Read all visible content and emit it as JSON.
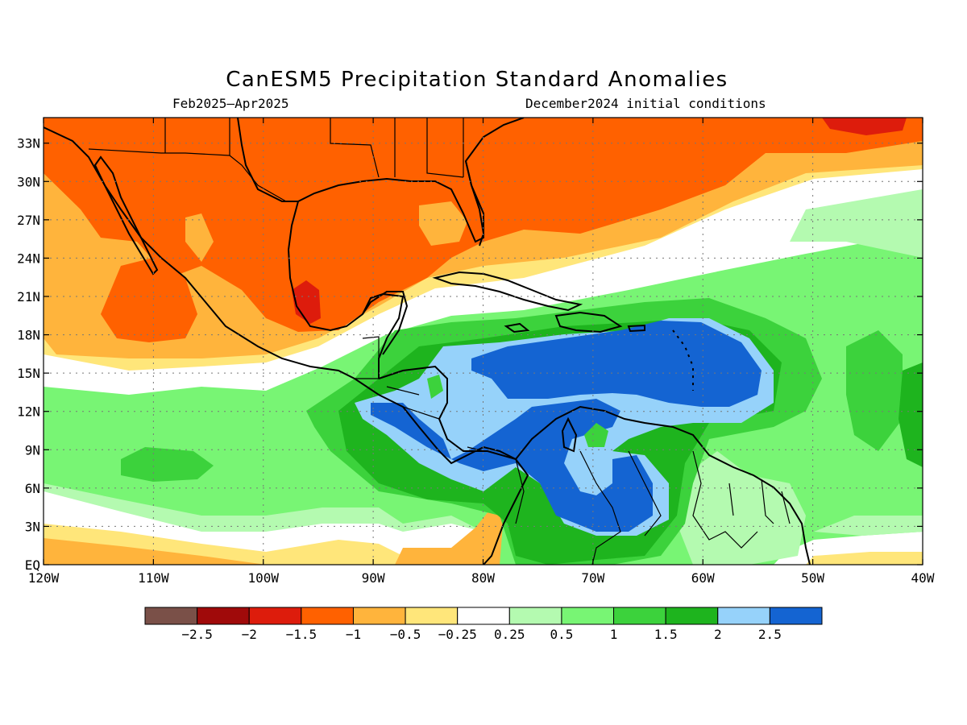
{
  "title": "CanESM5 Precipitation Standard Anomalies",
  "period": "Feb2025–Apr2025",
  "init_conditions": "December2024 initial conditions",
  "map": {
    "lon_range": [
      -120,
      -40
    ],
    "lat_range": [
      0,
      35
    ],
    "lat_ticks": [
      {
        "value": 33,
        "label": "33N"
      },
      {
        "value": 30,
        "label": "30N"
      },
      {
        "value": 27,
        "label": "27N"
      },
      {
        "value": 24,
        "label": "24N"
      },
      {
        "value": 21,
        "label": "21N"
      },
      {
        "value": 18,
        "label": "18N"
      },
      {
        "value": 15,
        "label": "15N"
      },
      {
        "value": 12,
        "label": "12N"
      },
      {
        "value": 9,
        "label": "9N"
      },
      {
        "value": 6,
        "label": "6N"
      },
      {
        "value": 3,
        "label": "3N"
      },
      {
        "value": 0,
        "label": "EQ"
      }
    ],
    "lon_ticks": [
      {
        "value": -120,
        "label": "120W"
      },
      {
        "value": -110,
        "label": "110W"
      },
      {
        "value": -100,
        "label": "100W"
      },
      {
        "value": -90,
        "label": "90W"
      },
      {
        "value": -80,
        "label": "80W"
      },
      {
        "value": -70,
        "label": "70W"
      },
      {
        "value": -60,
        "label": "60W"
      },
      {
        "value": -50,
        "label": "50W"
      },
      {
        "value": -40,
        "label": "40W"
      }
    ],
    "grid": "dotted"
  },
  "colorbar": {
    "colors": [
      "#7a5048",
      "#a00a0a",
      "#dd1c0c",
      "#ff6100",
      "#ffb43c",
      "#ffe67a",
      "#ffffff",
      "#b4fab0",
      "#78f574",
      "#3cd23c",
      "#1eb41e",
      "#96d2fa",
      "#1464d2"
    ],
    "labels": [
      "−2.5",
      "−2",
      "−1.5",
      "−1",
      "−0.5",
      "−0.25",
      "0.25",
      "0.5",
      "1",
      "1.5",
      "2",
      "2.5"
    ]
  }
}
